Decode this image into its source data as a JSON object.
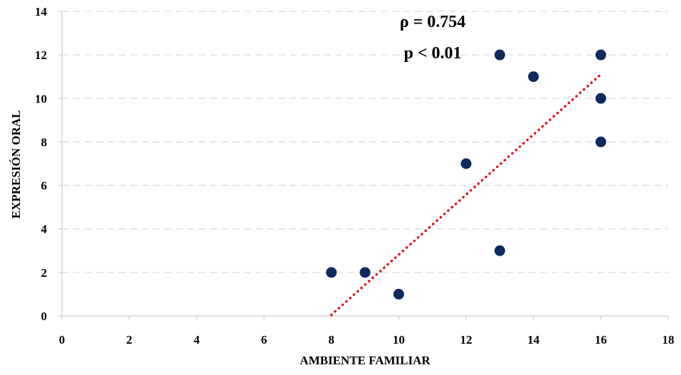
{
  "chart_data": {
    "type": "scatter",
    "title": "",
    "xlabel": "AMBIENTE FAMILIAR",
    "ylabel": "EXPRESIÓN ORAL",
    "xlim": [
      0,
      18
    ],
    "ylim": [
      0,
      14
    ],
    "x_ticks": [
      "0",
      "2",
      "4",
      "6",
      "8",
      "10",
      "12",
      "14",
      "16",
      "18"
    ],
    "y_ticks": [
      "0",
      "2",
      "4",
      "6",
      "8",
      "10",
      "12",
      "14"
    ],
    "grid": "horizontal dashed",
    "legend": "none",
    "annotations": [
      "ρ = 0.754",
      "p < 0.01"
    ],
    "series": [
      {
        "points": [
          {
            "x": 8,
            "y": 2
          },
          {
            "x": 9,
            "y": 2
          },
          {
            "x": 10,
            "y": 1
          },
          {
            "x": 12,
            "y": 7
          },
          {
            "x": 13,
            "y": 12
          },
          {
            "x": 13,
            "y": 3
          },
          {
            "x": 14,
            "y": 11
          },
          {
            "x": 16,
            "y": 12
          },
          {
            "x": 16,
            "y": 10
          },
          {
            "x": 16,
            "y": 8
          }
        ],
        "color": "#0e2a5e"
      }
    ],
    "trendline": {
      "style": "dotted",
      "color": "#e30613",
      "start": {
        "x": 8,
        "y": 0.05
      },
      "end": {
        "x": 16,
        "y": 11.1
      }
    }
  }
}
